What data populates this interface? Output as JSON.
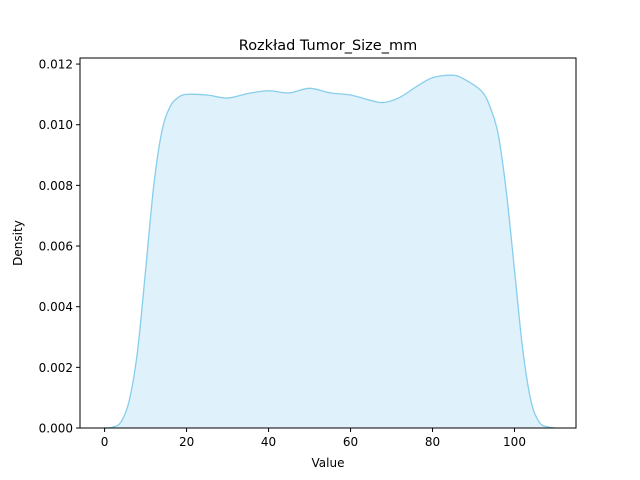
{
  "chart_data": {
    "type": "area",
    "title": "Rozkład Tumor_Size_mm",
    "xlabel": "Value",
    "ylabel": "Density",
    "xlim": [
      -6,
      115
    ],
    "ylim": [
      0,
      0.0122
    ],
    "xticks": [
      0,
      20,
      40,
      60,
      80,
      100
    ],
    "xtick_labels": [
      "0",
      "20",
      "40",
      "60",
      "80",
      "100"
    ],
    "yticks": [
      0,
      0.002,
      0.004,
      0.006,
      0.008,
      0.01,
      0.012
    ],
    "ytick_labels": [
      "0.000",
      "0.002",
      "0.004",
      "0.006",
      "0.008",
      "0.010",
      "0.012"
    ],
    "grid": false,
    "series": [
      {
        "line_color": "#87ceeb",
        "fill_color": "#dff1fa",
        "x": [
          0,
          2,
          4,
          6,
          8,
          10,
          12,
          14,
          16,
          18,
          20,
          25,
          30,
          35,
          40,
          45,
          50,
          55,
          60,
          65,
          68,
          72,
          76,
          80,
          85,
          88,
          92,
          94,
          96,
          98,
          100,
          102,
          104,
          106,
          108,
          110
        ],
        "y": [
          0.0,
          3e-05,
          0.0002,
          0.0009,
          0.0025,
          0.0052,
          0.008,
          0.0098,
          0.0106,
          0.0109,
          0.011,
          0.01098,
          0.01088,
          0.01103,
          0.01112,
          0.01105,
          0.0112,
          0.01105,
          0.01098,
          0.0108,
          0.01073,
          0.0109,
          0.01125,
          0.01155,
          0.01163,
          0.01148,
          0.0111,
          0.0106,
          0.0097,
          0.0078,
          0.0052,
          0.0026,
          0.0009,
          0.0002,
          4e-05,
          0.0
        ]
      }
    ]
  }
}
